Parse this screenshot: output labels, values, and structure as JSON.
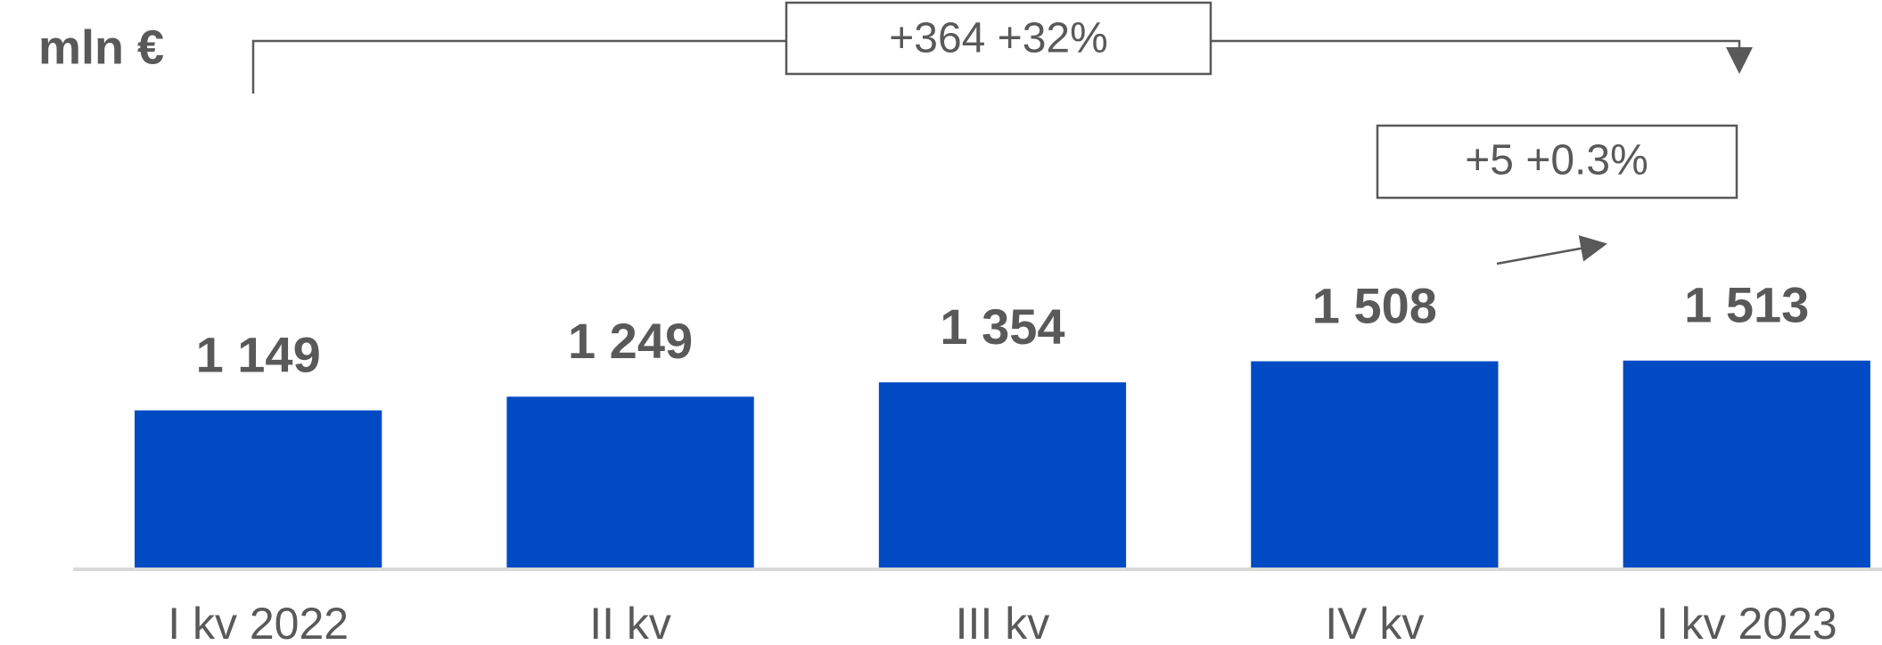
{
  "chart_data": {
    "type": "bar",
    "unit_label": "mln €",
    "categories": [
      "I kv 2022",
      "II kv",
      "III kv",
      "IV kv",
      "I kv 2023"
    ],
    "values": [
      1149,
      1249,
      1354,
      1508,
      1513
    ],
    "value_labels": [
      "1 149",
      "1 249",
      "1 354",
      "1 508",
      "1 513"
    ],
    "color": "#004bc4",
    "annotations": [
      "+364 +32%",
      "+5 +0.3%"
    ]
  }
}
